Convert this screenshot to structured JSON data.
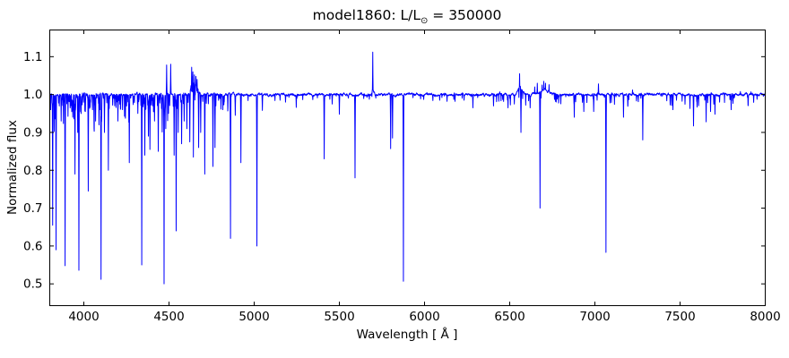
{
  "figure": {
    "background": "#ffffff",
    "title": {
      "prefix": "model1860: L/L",
      "odot": "⊙",
      "suffix": " = 350000"
    },
    "xlabel": "Wavelength [ Å ]",
    "ylabel": "Normalized flux"
  },
  "axes": {
    "xlim": [
      3800,
      8000
    ],
    "ylim": [
      0.4425,
      1.1705
    ],
    "xticks": [
      4000,
      4500,
      5000,
      5500,
      6000,
      6500,
      7000,
      7500,
      8000
    ],
    "yticks": [
      0.5,
      0.6,
      0.7,
      0.8,
      0.9,
      1.0,
      1.1
    ],
    "spine_color": "#000000",
    "tick_length": 4.5,
    "grid": false,
    "legend": "none"
  },
  "chart_data": {
    "type": "line",
    "title": "model1860: L/L⊙ = 350000",
    "xlabel": "Wavelength [ Å ]",
    "ylabel": "Normalized flux",
    "xlim": [
      3800,
      8000
    ],
    "ylim": [
      0.4425,
      1.1705
    ],
    "line_color": "#0000ff",
    "wavelength_unit": "Angstrom",
    "continuum_level": 1.0,
    "absorption_lines": [
      [
        3805,
        0.96
      ],
      [
        3817,
        0.655
      ],
      [
        3837,
        0.59
      ],
      [
        3856,
        0.97
      ],
      [
        3867,
        0.93
      ],
      [
        3890,
        0.548
      ],
      [
        3920,
        0.965
      ],
      [
        3935,
        0.94
      ],
      [
        3948,
        0.79
      ],
      [
        3964,
        0.9
      ],
      [
        3971,
        0.536
      ],
      [
        4009,
        0.955
      ],
      [
        4026,
        0.745
      ],
      [
        4069,
        0.93
      ],
      [
        4089,
        0.92
      ],
      [
        4101,
        0.512
      ],
      [
        4121,
        0.9
      ],
      [
        4144,
        0.8
      ],
      [
        4200,
        0.93
      ],
      [
        4227,
        0.96
      ],
      [
        4267,
        0.82
      ],
      [
        4317,
        0.95
      ],
      [
        4340,
        0.55
      ],
      [
        4358,
        0.84
      ],
      [
        4379,
        0.89
      ],
      [
        4388,
        0.855
      ],
      [
        4415,
        0.93
      ],
      [
        4437,
        0.85
      ],
      [
        4471,
        0.5
      ],
      [
        4481,
        0.91
      ],
      [
        4497,
        0.95
      ],
      [
        4530,
        0.84
      ],
      [
        4542,
        0.64
      ],
      [
        4554,
        0.9
      ],
      [
        4574,
        0.87
      ],
      [
        4589,
        0.93
      ],
      [
        4605,
        0.91
      ],
      [
        4622,
        0.875
      ],
      [
        4643,
        0.835
      ],
      [
        4650,
        0.88
      ],
      [
        4674,
        0.86
      ],
      [
        4686,
        0.9
      ],
      [
        4710,
        0.79
      ],
      [
        4758,
        0.81
      ],
      [
        4770,
        0.86
      ],
      [
        4816,
        0.96
      ],
      [
        4861,
        0.62
      ],
      [
        4889,
        0.945
      ],
      [
        4922,
        0.82
      ],
      [
        5016,
        0.6
      ],
      [
        5048,
        0.958
      ],
      [
        5152,
        0.985
      ],
      [
        5184,
        0.98
      ],
      [
        5247,
        0.966
      ],
      [
        5411,
        0.83
      ],
      [
        5458,
        0.975
      ],
      [
        5500,
        0.948
      ],
      [
        5592,
        0.78
      ],
      [
        5801,
        0.857
      ],
      [
        5812,
        0.885
      ],
      [
        5876,
        0.507
      ],
      [
        6089,
        0.985
      ],
      [
        6132,
        0.982
      ],
      [
        6179,
        0.982
      ],
      [
        6232,
        0.985
      ],
      [
        6284,
        0.965
      ],
      [
        6405,
        0.97
      ],
      [
        6490,
        0.965
      ],
      [
        6527,
        0.975
      ],
      [
        6566,
        0.9
      ],
      [
        6620,
        0.965
      ],
      [
        6678,
        0.7
      ],
      [
        6879,
        0.94
      ],
      [
        6935,
        0.955
      ],
      [
        6993,
        0.955
      ],
      [
        7065,
        0.583
      ],
      [
        7089,
        0.978
      ],
      [
        7168,
        0.94
      ],
      [
        7281,
        0.88
      ],
      [
        7458,
        0.96
      ],
      [
        7479,
        0.985
      ],
      [
        7558,
        0.963
      ],
      [
        7579,
        0.917
      ],
      [
        7600,
        0.967
      ],
      [
        7653,
        0.928
      ],
      [
        7679,
        0.955
      ],
      [
        7705,
        0.948
      ],
      [
        7732,
        0.98
      ],
      [
        7800,
        0.96
      ]
    ],
    "emission_lines": [
      [
        4486,
        1.078
      ],
      [
        4510,
        1.08
      ],
      [
        4633,
        1.072
      ],
      [
        4640,
        1.06
      ],
      [
        4649,
        1.052
      ],
      [
        4658,
        1.048
      ],
      [
        4665,
        1.04
      ],
      [
        5696,
        1.112
      ],
      [
        6442,
        1.007
      ],
      [
        6558,
        1.055
      ],
      [
        6647,
        1.02
      ],
      [
        6662,
        1.03
      ],
      [
        6690,
        1.025
      ],
      [
        6700,
        1.035
      ],
      [
        6710,
        1.03
      ],
      [
        6731,
        1.026
      ],
      [
        7021,
        1.028
      ],
      [
        7221,
        1.012
      ],
      [
        7854,
        1.008
      ],
      [
        7916,
        1.007
      ]
    ],
    "broad_emission_bumps": [
      [
        4635,
        0.03,
        5
      ],
      [
        4650,
        0.03,
        14
      ],
      [
        5696,
        0.01,
        6
      ],
      [
        6562,
        0.02,
        11
      ],
      [
        6705,
        0.012,
        25
      ]
    ],
    "noise": {
      "seed": 42,
      "jitter": 0.004,
      "regions": [
        [
          3800,
          4500,
          0.18,
          0.035
        ],
        [
          3800,
          4500,
          0.035,
          0.09
        ],
        [
          4500,
          4850,
          0.1,
          0.04
        ],
        [
          4850,
          6420,
          0.022,
          0.016
        ],
        [
          6420,
          8000,
          0.055,
          0.028
        ]
      ]
    }
  }
}
